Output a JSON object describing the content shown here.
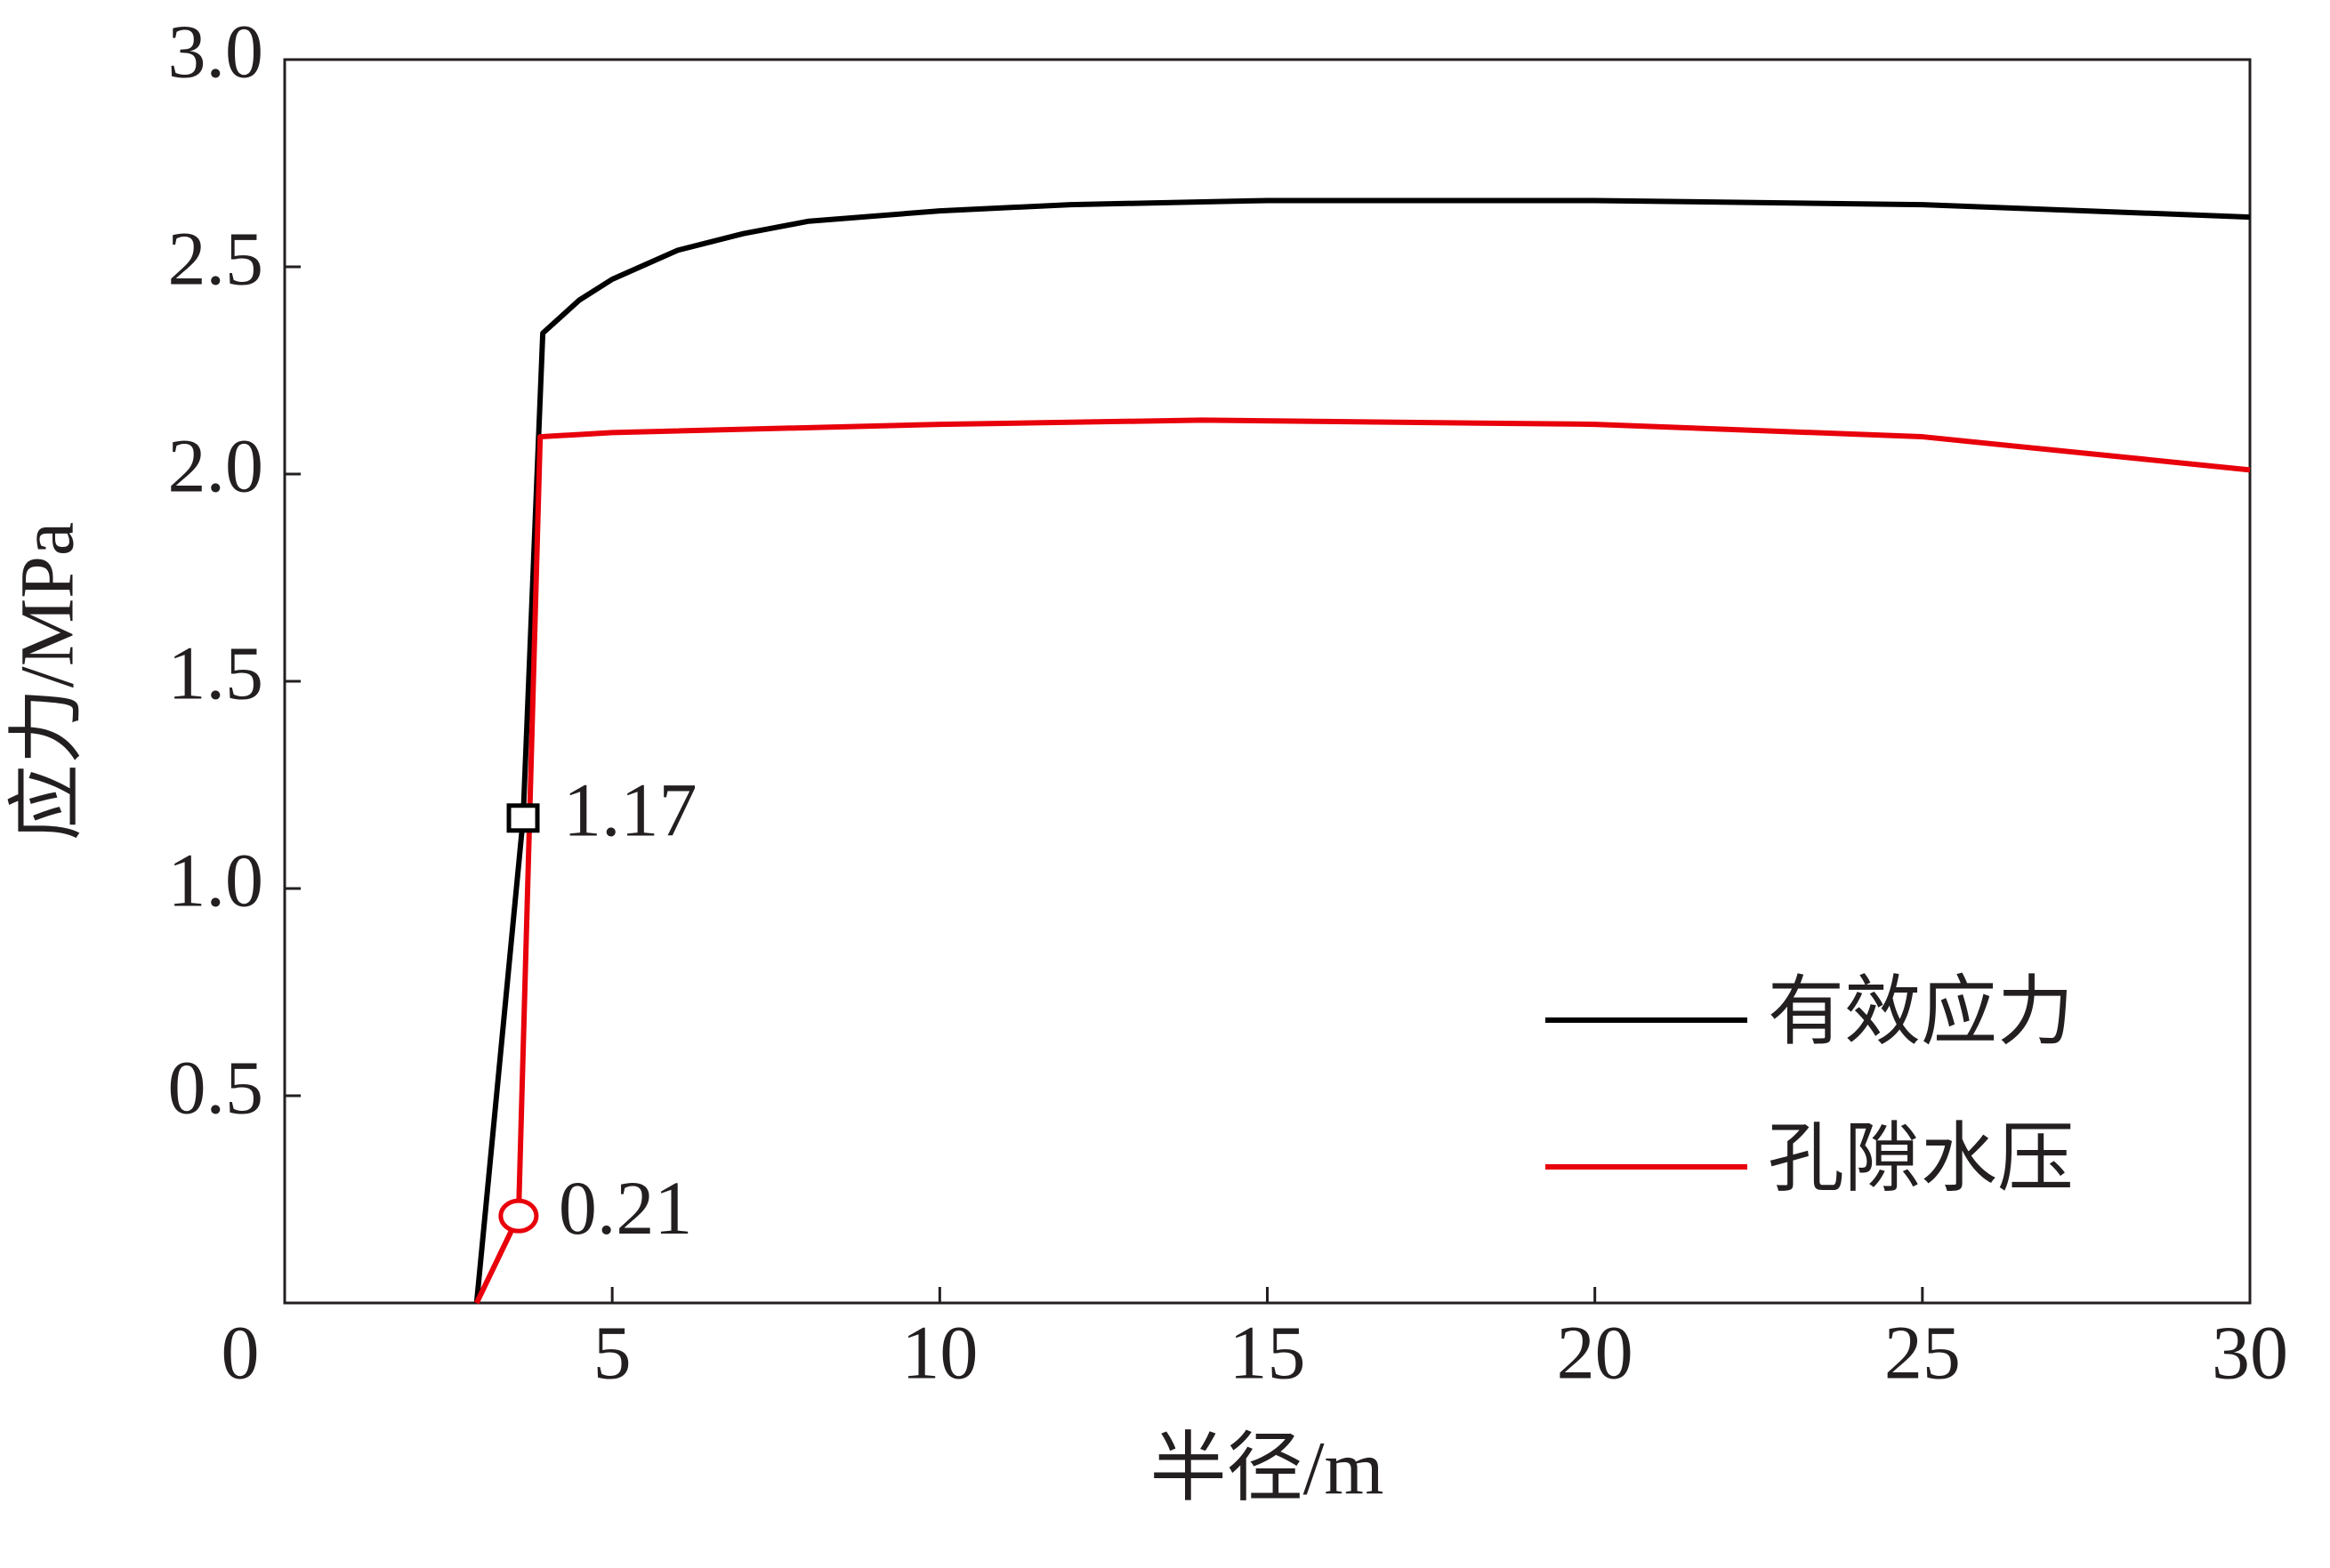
{
  "chart_data": {
    "type": "line",
    "x_label": "半径/m",
    "y_label": "应力/MPa",
    "xlim": [
      0,
      30
    ],
    "ylim": [
      0,
      3
    ],
    "xticks": [
      0,
      5,
      10,
      15,
      20,
      25,
      30
    ],
    "yticks": [
      0.5,
      {
        "value": 1,
        "label": "1.0"
      },
      1.5,
      {
        "value": 2,
        "label": "2.0"
      },
      2.5,
      {
        "value": 3,
        "label": "3.0"
      }
    ],
    "legend": "lower right",
    "series": [
      {
        "name": "有效应力",
        "color": "#000000",
        "x": [
          2.93,
          3.64,
          3.94,
          4.5,
          5,
          6,
          7,
          8,
          10,
          12,
          15,
          20,
          25,
          30
        ],
        "values": [
          0,
          1.17,
          2.34,
          2.42,
          2.47,
          2.54,
          2.58,
          2.61,
          2.635,
          2.65,
          2.66,
          2.66,
          2.65,
          2.62
        ]
      },
      {
        "name": "孔隙水压",
        "color": "#e8000b",
        "x": [
          2.93,
          3.57,
          3.9,
          5,
          10,
          14,
          20,
          25,
          30
        ],
        "values": [
          0,
          0.21,
          2.09,
          2.1,
          2.12,
          2.13,
          2.12,
          2.09,
          2.01
        ]
      }
    ],
    "annotations": [
      {
        "x": 3.64,
        "y": 1.17,
        "label": "1.17",
        "marker": "square",
        "color": "#000000"
      },
      {
        "x": 3.57,
        "y": 0.21,
        "label": "0.21",
        "marker": "circle",
        "color": "#e8000b"
      }
    ]
  }
}
